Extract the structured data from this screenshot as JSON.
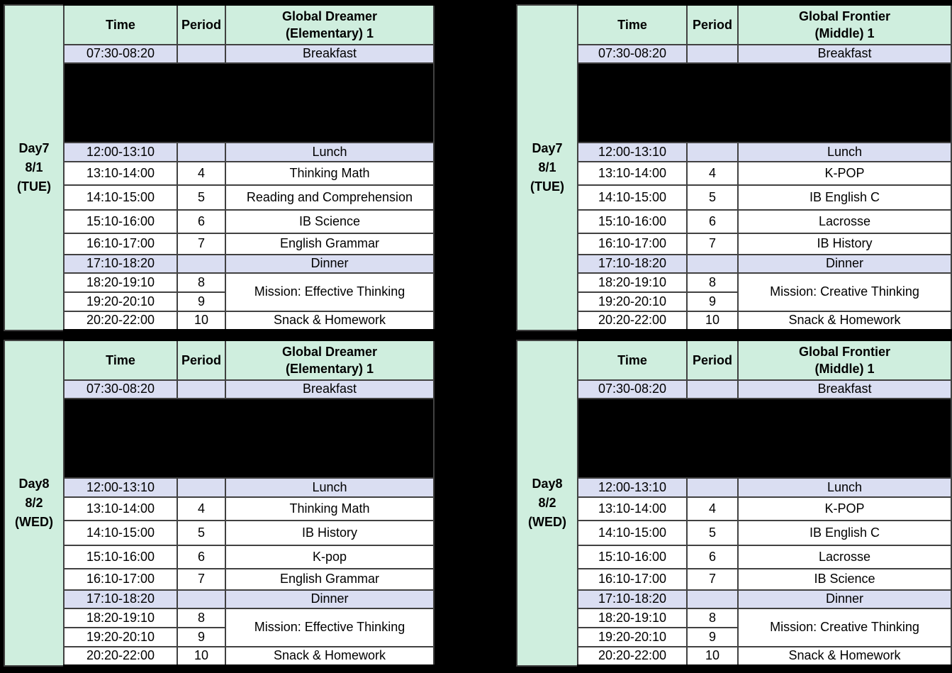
{
  "colors": {
    "background": "#000000",
    "header_mint": "#cfeede",
    "meal_lavender": "#dadef2",
    "row_white": "#ffffff",
    "grid_line": "#414141",
    "text": "#000000"
  },
  "tables": [
    {
      "day": [
        "Day7",
        "8/1",
        "(TUE)"
      ],
      "header": {
        "time": "Time",
        "period": "Period",
        "group_line1": "Global Dreamer",
        "group_line2": "(Elementary) 1"
      },
      "breakfast": {
        "time": "07:30-08:20",
        "label": "Breakfast"
      },
      "lunch": {
        "time": "12:00-13:10",
        "label": "Lunch"
      },
      "dinner": {
        "time": "17:10-18:20",
        "label": "Dinner"
      },
      "classes": [
        {
          "time": "13:10-14:00",
          "period": "4",
          "subject": "Thinking Math"
        },
        {
          "time": "14:10-15:00",
          "period": "5",
          "subject": "Reading and Comprehension"
        },
        {
          "time": "15:10-16:00",
          "period": "6",
          "subject": "IB Science"
        },
        {
          "time": "16:10-17:00",
          "period": "7",
          "subject": "English Grammar"
        }
      ],
      "evening": {
        "rows": [
          {
            "time": "18:20-19:10",
            "period": "8"
          },
          {
            "time": "19:20-20:10",
            "period": "9"
          }
        ],
        "mission": "Mission: Effective Thinking",
        "last": {
          "time": "20:20-22:00",
          "period": "10",
          "subject": "Snack & Homework"
        }
      }
    },
    {
      "day": [
        "Day7",
        "8/1",
        "(TUE)"
      ],
      "header": {
        "time": "Time",
        "period": "Period",
        "group_line1": "Global Frontier",
        "group_line2": "(Middle) 1"
      },
      "breakfast": {
        "time": "07:30-08:20",
        "label": "Breakfast"
      },
      "lunch": {
        "time": "12:00-13:10",
        "label": "Lunch"
      },
      "dinner": {
        "time": "17:10-18:20",
        "label": "Dinner"
      },
      "classes": [
        {
          "time": "13:10-14:00",
          "period": "4",
          "subject": "K-POP"
        },
        {
          "time": "14:10-15:00",
          "period": "5",
          "subject": "IB English C"
        },
        {
          "time": "15:10-16:00",
          "period": "6",
          "subject": "Lacrosse"
        },
        {
          "time": "16:10-17:00",
          "period": "7",
          "subject": "IB History"
        }
      ],
      "evening": {
        "rows": [
          {
            "time": "18:20-19:10",
            "period": "8"
          },
          {
            "time": "19:20-20:10",
            "period": "9"
          }
        ],
        "mission": "Mission: Creative Thinking",
        "last": {
          "time": "20:20-22:00",
          "period": "10",
          "subject": "Snack & Homework"
        }
      }
    },
    {
      "day": [
        "Day8",
        "8/2",
        "(WED)"
      ],
      "header": {
        "time": "Time",
        "period": "Period",
        "group_line1": "Global Dreamer",
        "group_line2": "(Elementary) 1"
      },
      "breakfast": {
        "time": "07:30-08:20",
        "label": "Breakfast"
      },
      "lunch": {
        "time": "12:00-13:10",
        "label": "Lunch"
      },
      "dinner": {
        "time": "17:10-18:20",
        "label": "Dinner"
      },
      "classes": [
        {
          "time": "13:10-14:00",
          "period": "4",
          "subject": "Thinking Math"
        },
        {
          "time": "14:10-15:00",
          "period": "5",
          "subject": "IB History"
        },
        {
          "time": "15:10-16:00",
          "period": "6",
          "subject": "K-pop"
        },
        {
          "time": "16:10-17:00",
          "period": "7",
          "subject": "English Grammar"
        }
      ],
      "evening": {
        "rows": [
          {
            "time": "18:20-19:10",
            "period": "8"
          },
          {
            "time": "19:20-20:10",
            "period": "9"
          }
        ],
        "mission": "Mission: Effective Thinking",
        "last": {
          "time": "20:20-22:00",
          "period": "10",
          "subject": "Snack & Homework"
        }
      }
    },
    {
      "day": [
        "Day8",
        "8/2",
        "(WED)"
      ],
      "header": {
        "time": "Time",
        "period": "Period",
        "group_line1": "Global Frontier",
        "group_line2": "(Middle) 1"
      },
      "breakfast": {
        "time": "07:30-08:20",
        "label": "Breakfast"
      },
      "lunch": {
        "time": "12:00-13:10",
        "label": "Lunch"
      },
      "dinner": {
        "time": "17:10-18:20",
        "label": "Dinner"
      },
      "classes": [
        {
          "time": "13:10-14:00",
          "period": "4",
          "subject": "K-POP"
        },
        {
          "time": "14:10-15:00",
          "period": "5",
          "subject": "IB English C"
        },
        {
          "time": "15:10-16:00",
          "period": "6",
          "subject": "Lacrosse"
        },
        {
          "time": "16:10-17:00",
          "period": "7",
          "subject": "IB Science"
        }
      ],
      "evening": {
        "rows": [
          {
            "time": "18:20-19:10",
            "period": "8"
          },
          {
            "time": "19:20-20:10",
            "period": "9"
          }
        ],
        "mission": "Mission: Creative Thinking",
        "last": {
          "time": "20:20-22:00",
          "period": "10",
          "subject": "Snack & Homework"
        }
      }
    }
  ]
}
